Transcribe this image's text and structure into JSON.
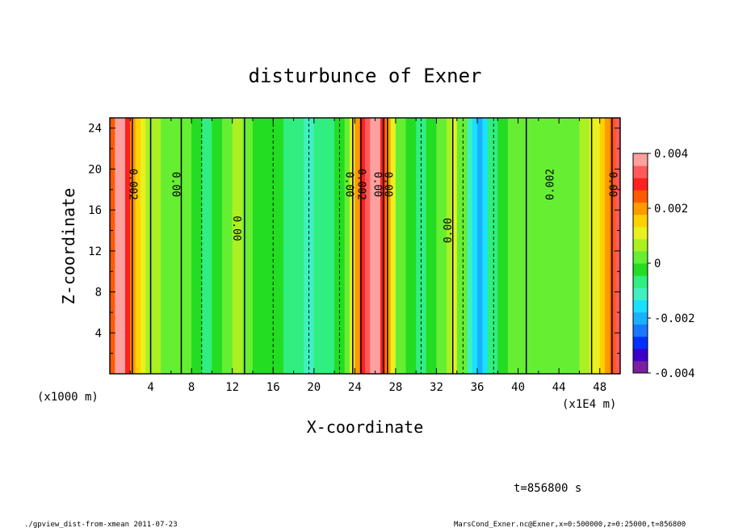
{
  "chart_data": {
    "type": "heatmap",
    "title": "disturbunce of Exner",
    "xlabel": "X-coordinate",
    "ylabel": "Z-coordinate",
    "x_unit_left": "(x1000 m)",
    "x_unit_right": "(x1E4 m)",
    "xlim": [
      0,
      50
    ],
    "ylim": [
      0,
      25
    ],
    "x_ticks": [
      "4",
      "8",
      "12",
      "16",
      "20",
      "24",
      "28",
      "32",
      "36",
      "40",
      "44",
      "48"
    ],
    "y_ticks": [
      "4",
      "8",
      "12",
      "16",
      "20",
      "24"
    ],
    "colorbar": {
      "range": [
        -0.004,
        0.004
      ],
      "labels": [
        "0.004",
        "0.002",
        "0",
        "-0.002",
        "-0.004"
      ],
      "colors": [
        "#7b1fa2",
        "#3a00c8",
        "#0030ff",
        "#1a78ff",
        "#19b0ff",
        "#19e0ff",
        "#40f0c0",
        "#30ee80",
        "#22dd22",
        "#66ee33",
        "#aaf022",
        "#e8f020",
        "#ffd000",
        "#ff9a00",
        "#ff5a00",
        "#ff2020",
        "#ff5a5a",
        "#ffa0a0"
      ]
    },
    "contour_labels": [
      "0.002",
      "0.00",
      "0.00",
      "0.00",
      "0.002",
      "0.00",
      "0.00",
      "0.00",
      "0.002",
      "0.00"
    ],
    "bands": [
      {
        "x": 0.0,
        "v": 0.0024
      },
      {
        "x": 0.5,
        "v": 0.0036
      },
      {
        "x": 1.0,
        "v": 0.0036
      },
      {
        "x": 1.5,
        "v": 0.003
      },
      {
        "x": 2.0,
        "v": 0.0022
      },
      {
        "x": 2.5,
        "v": 0.0016
      },
      {
        "x": 3.0,
        "v": 0.0011
      },
      {
        "x": 3.5,
        "v": 0.0008
      },
      {
        "x": 4.0,
        "v": 0.0006
      },
      {
        "x": 5.0,
        "v": 0.0004
      },
      {
        "x": 6.0,
        "v": 0.0002
      },
      {
        "x": 7.0,
        "v": 0.0001
      },
      {
        "x": 8.0,
        "v": -0.0003
      },
      {
        "x": 9.0,
        "v": -0.0006
      },
      {
        "x": 10.0,
        "v": -0.0004
      },
      {
        "x": 11.0,
        "v": 0.0001
      },
      {
        "x": 12.0,
        "v": 0.0006
      },
      {
        "x": 13.0,
        "v": 0.0002
      },
      {
        "x": 14.0,
        "v": -0.0002
      },
      {
        "x": 15.0,
        "v": -0.0004
      },
      {
        "x": 16.0,
        "v": -0.0003
      },
      {
        "x": 17.0,
        "v": -0.0005
      },
      {
        "x": 18.0,
        "v": -0.0008
      },
      {
        "x": 19.0,
        "v": -0.001
      },
      {
        "x": 20.0,
        "v": -0.0008
      },
      {
        "x": 21.0,
        "v": -0.0006
      },
      {
        "x": 22.0,
        "v": -0.0004
      },
      {
        "x": 23.0,
        "v": 0.0
      },
      {
        "x": 23.5,
        "v": 0.001
      },
      {
        "x": 24.0,
        "v": 0.0018
      },
      {
        "x": 24.5,
        "v": 0.0028
      },
      {
        "x": 25.0,
        "v": 0.0034
      },
      {
        "x": 25.5,
        "v": 0.0038
      },
      {
        "x": 26.0,
        "v": 0.0036
      },
      {
        "x": 26.5,
        "v": 0.0028
      },
      {
        "x": 27.0,
        "v": 0.0018
      },
      {
        "x": 27.5,
        "v": 0.001
      },
      {
        "x": 28.0,
        "v": 0.0004
      },
      {
        "x": 29.0,
        "v": -0.0002
      },
      {
        "x": 30.0,
        "v": -0.0006
      },
      {
        "x": 31.0,
        "v": -0.0004
      },
      {
        "x": 32.0,
        "v": 0.0001
      },
      {
        "x": 33.0,
        "v": 0.0006
      },
      {
        "x": 33.5,
        "v": 0.0012
      },
      {
        "x": 34.0,
        "v": 0.0004
      },
      {
        "x": 35.0,
        "v": -0.001
      },
      {
        "x": 35.5,
        "v": -0.0016
      },
      {
        "x": 36.0,
        "v": -0.002
      },
      {
        "x": 36.5,
        "v": -0.0016
      },
      {
        "x": 37.0,
        "v": -0.0008
      },
      {
        "x": 38.0,
        "v": -0.0002
      },
      {
        "x": 39.0,
        "v": 0.0001
      },
      {
        "x": 41.0,
        "v": 0.0002
      },
      {
        "x": 43.0,
        "v": 0.0003
      },
      {
        "x": 45.0,
        "v": 0.0004
      },
      {
        "x": 46.0,
        "v": 0.0006
      },
      {
        "x": 47.0,
        "v": 0.0009
      },
      {
        "x": 48.0,
        "v": 0.0014
      },
      {
        "x": 48.5,
        "v": 0.0018
      },
      {
        "x": 49.0,
        "v": 0.0024
      },
      {
        "x": 49.5,
        "v": 0.0032
      },
      {
        "x": 50.0,
        "v": 0.0036
      }
    ]
  },
  "footer": {
    "time": "t=856800 s",
    "left_note": "./gpview_dist-from-xmean  2011-07-23",
    "right_note": "MarsCond_Exner.nc@Exner,x=0:500000,z=0:25000,t=856800"
  }
}
